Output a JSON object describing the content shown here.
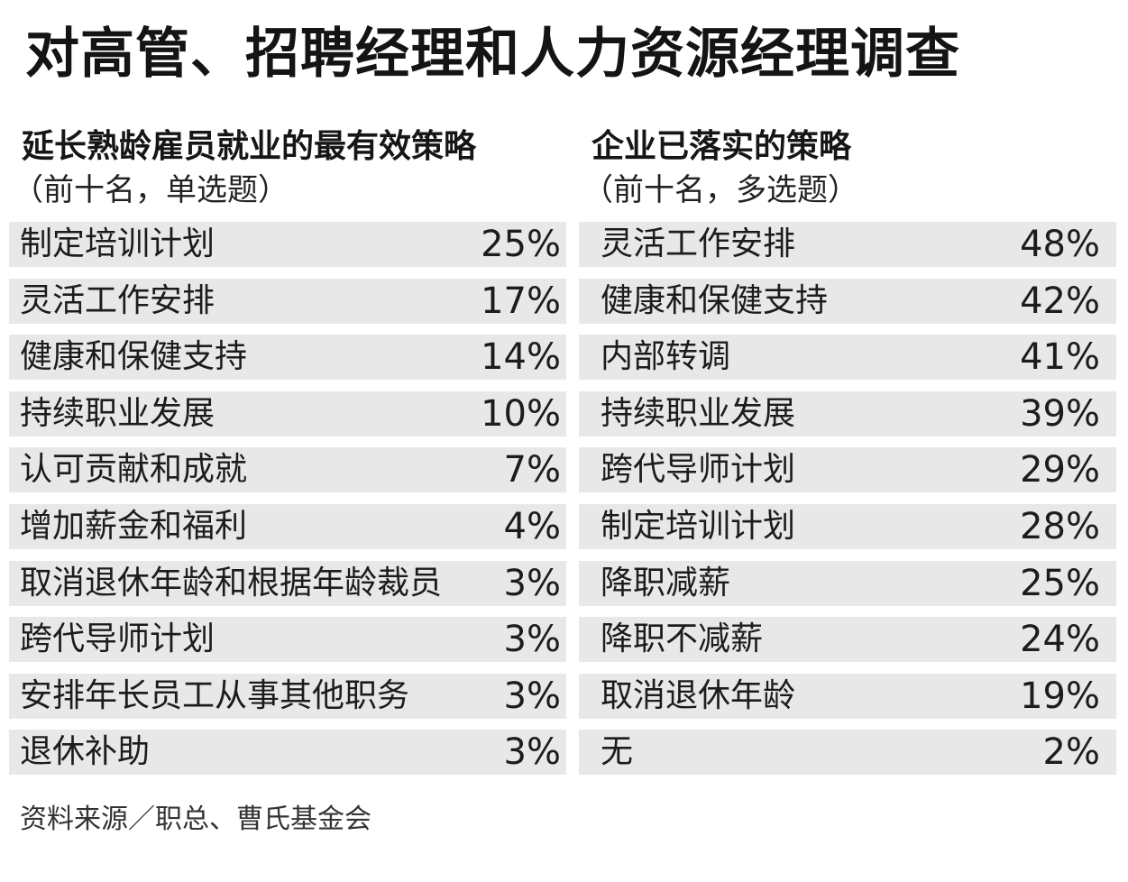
{
  "title": "对高管、招聘经理和人力资源经理调查",
  "source": "资料来源／职总、曹氏基金会",
  "chart_data": [
    {
      "type": "table",
      "title": "延长熟龄雇员就业的最有效策略",
      "subtitle": "（前十名，单选题）",
      "categories": [
        "制定培训计划",
        "灵活工作安排",
        "健康和保健支持",
        "持续职业发展",
        "认可贡献和成就",
        "增加薪金和福利",
        "取消退休年龄和根据年龄裁员",
        "跨代导师计划",
        "安排年长员工从事其他职务",
        "退休补助"
      ],
      "values": [
        25,
        17,
        14,
        10,
        7,
        4,
        3,
        3,
        3,
        3
      ],
      "value_labels": [
        "25%",
        "17%",
        "14%",
        "10%",
        "7%",
        "4%",
        "3%",
        "3%",
        "3%",
        "3%"
      ]
    },
    {
      "type": "table",
      "title": "企业已落实的策略",
      "subtitle": "（前十名，多选题）",
      "categories": [
        "灵活工作安排",
        "健康和保健支持",
        "内部转调",
        "持续职业发展",
        "跨代导师计划",
        "制定培训计划",
        "降职减薪",
        "降职不减薪",
        "取消退休年龄",
        "无"
      ],
      "values": [
        48,
        42,
        41,
        39,
        29,
        28,
        25,
        24,
        19,
        2
      ],
      "value_labels": [
        "48%",
        "42%",
        "41%",
        "39%",
        "29%",
        "28%",
        "25%",
        "24%",
        "19%",
        "2%"
      ]
    }
  ],
  "colors": {
    "row_background": "#e8e8e8",
    "text": "#1c1c1c",
    "background": "#ffffff"
  }
}
